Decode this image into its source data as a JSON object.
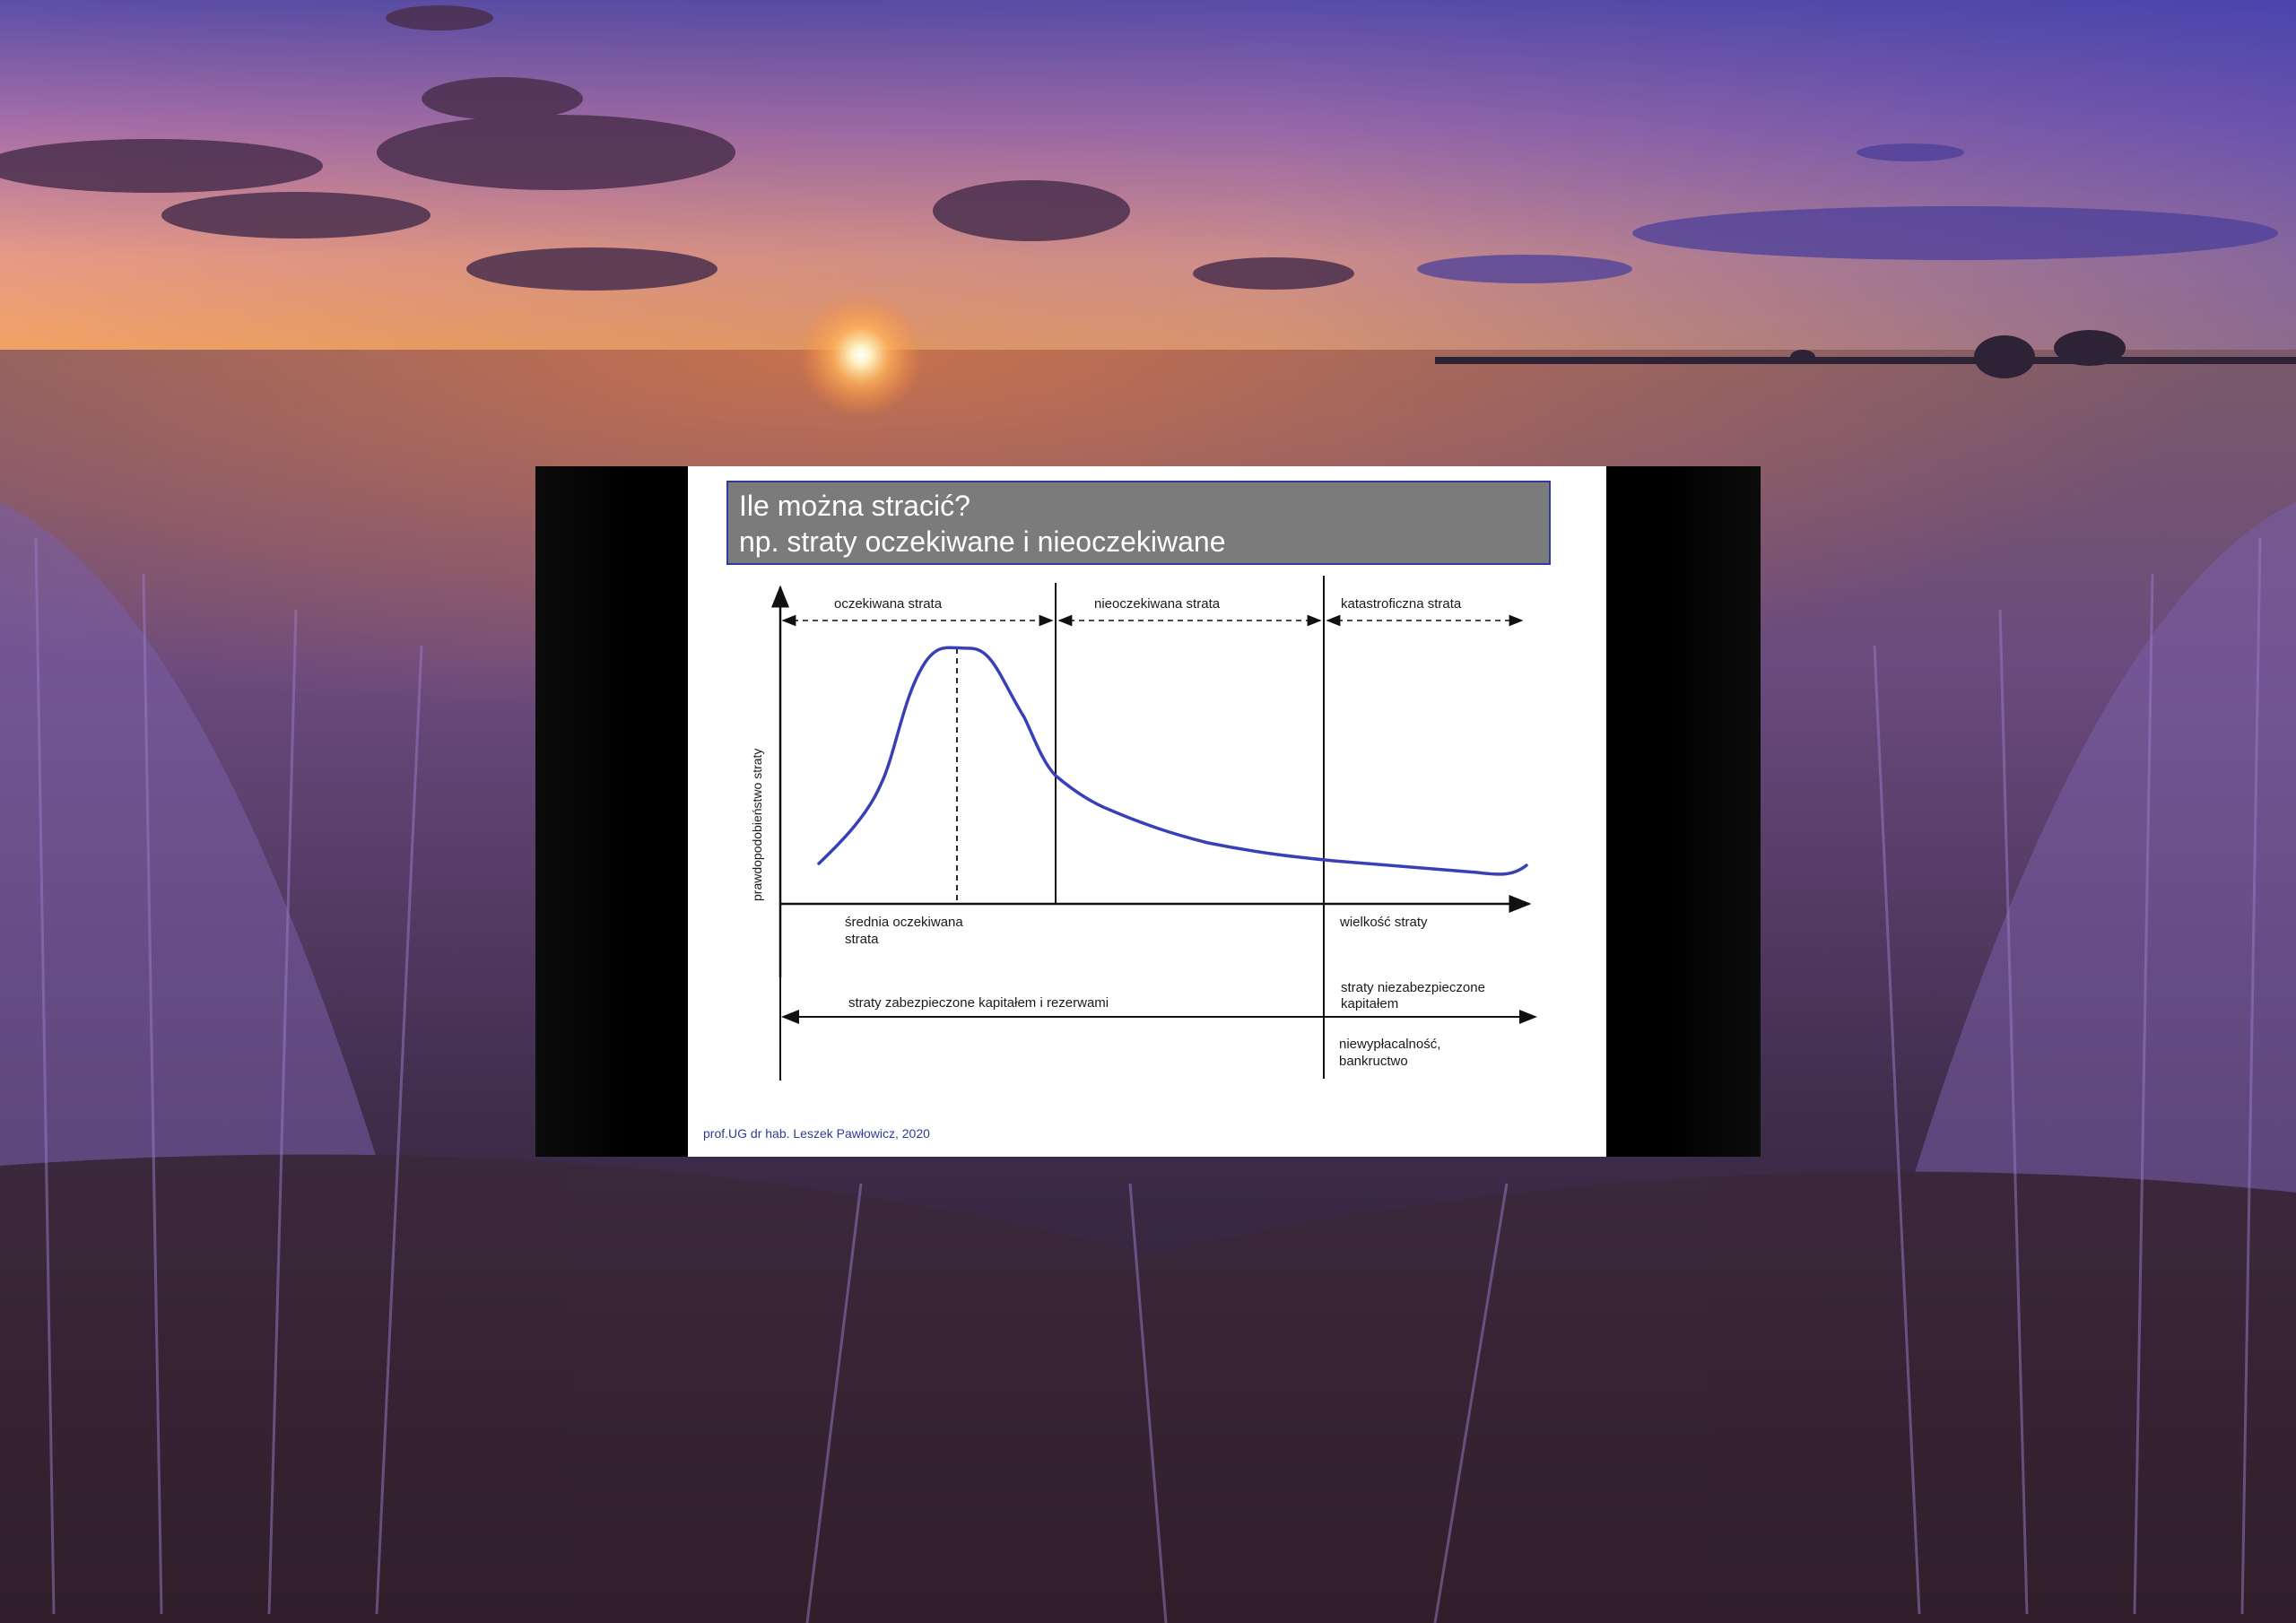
{
  "desktop": {
    "wallpaper_icon": "lavender-field-sunset-image"
  },
  "slide": {
    "title_line1": "Ile można stracić?",
    "title_line2": "np. straty oczekiwane i nieoczekiwane",
    "footer": "prof.UG dr hab. Leszek Pawłowicz, 2020",
    "colors": {
      "title_bg": "#7b7b7b",
      "title_border": "#2f3c98",
      "curve": "#3a3fb5",
      "footer": "#2f3c98"
    }
  },
  "diagram": {
    "band_expected": "oczekiwana strata",
    "band_unexpected": "nieoczekiwana strata",
    "band_catastrophic": "katastroficzna strata",
    "y_axis_label": "prawdopodobieństwo straty",
    "x_axis_label": "wielkość straty",
    "mean_label_line1": "średnia oczekiwana",
    "mean_label_line2": "strata",
    "covered_label": "straty zabezpieczone kapitałem i rezerwami",
    "uncovered_line1": "straty niezabezpieczone",
    "uncovered_line2": "kapitałem",
    "insolvency_line1": "niewypłacalność,",
    "insolvency_line2": "bankructwo"
  }
}
